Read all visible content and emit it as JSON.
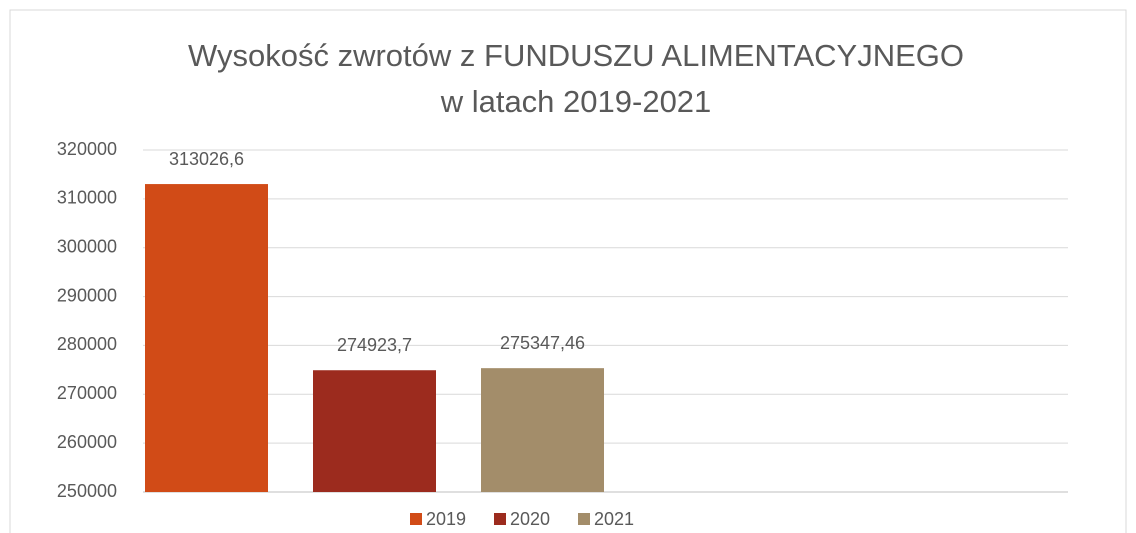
{
  "chart_data": {
    "type": "bar",
    "title": [
      "Wysokość zwrotów z FUNDUSZU ALIMENTACYJNEGO",
      "w latach 2019-2021"
    ],
    "series": [
      {
        "name": "2019",
        "color": "#d14b17",
        "values": [
          313026.6
        ],
        "value_labels": [
          "313026,6"
        ]
      },
      {
        "name": "2020",
        "color": "#9c2b1e",
        "values": [
          274923.7
        ],
        "value_labels": [
          "274923,7"
        ]
      },
      {
        "name": "2021",
        "color": "#a38d6a",
        "values": [
          275347.46
        ],
        "value_labels": [
          "275347,46"
        ]
      }
    ],
    "ylim": [
      250000,
      320000
    ],
    "yticks": [
      250000,
      260000,
      270000,
      280000,
      290000,
      300000,
      310000,
      320000
    ],
    "grid": true,
    "legend": "bottom"
  }
}
